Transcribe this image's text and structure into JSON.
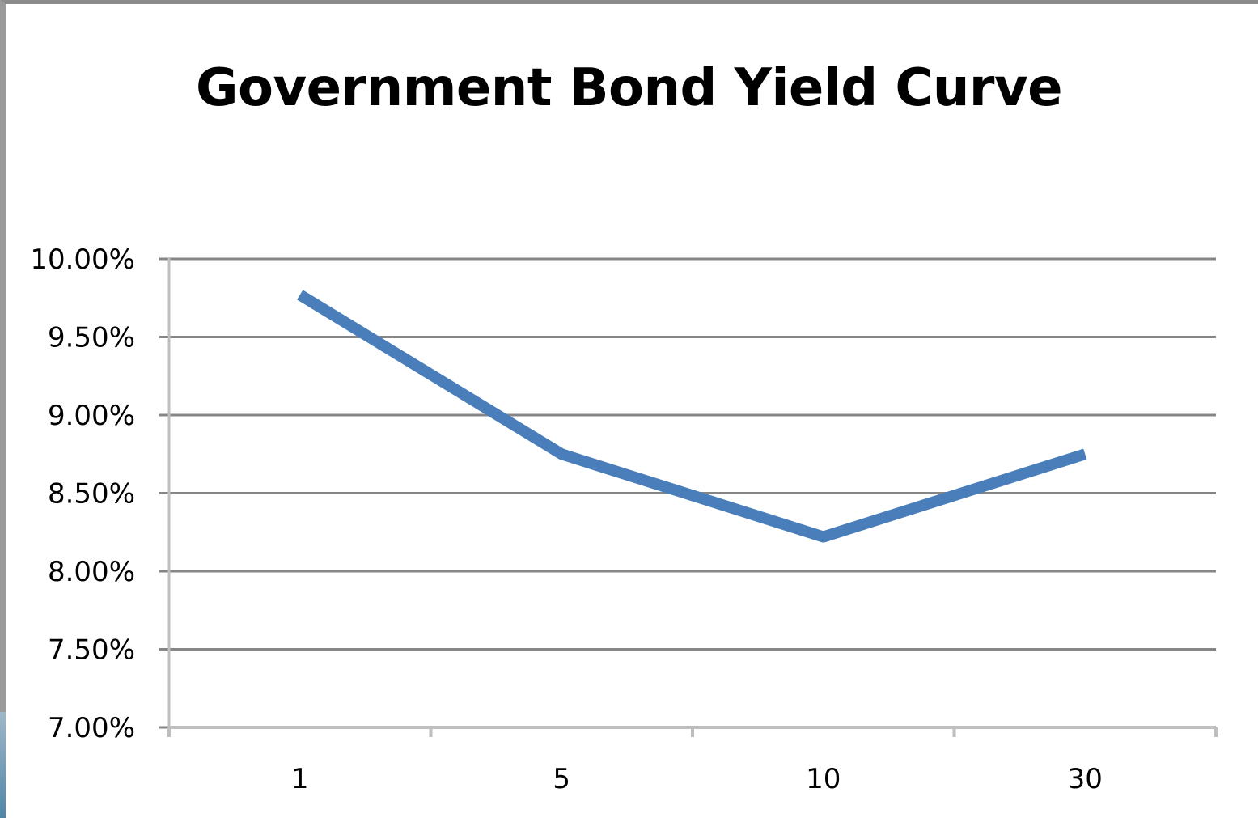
{
  "chart_data": {
    "type": "line",
    "title": "Government Bond Yield Curve",
    "xlabel": "",
    "ylabel": "",
    "categories": [
      "1",
      "5",
      "10",
      "30"
    ],
    "series": [
      {
        "values": [
          9.77,
          8.75,
          8.22,
          8.75
        ]
      }
    ],
    "ylim": [
      7.0,
      10.0
    ],
    "yticks": [
      "7.00%",
      "7.50%",
      "8.00%",
      "8.50%",
      "9.00%",
      "9.50%",
      "10.00%"
    ],
    "grid": true,
    "legend": "none",
    "colors": {
      "line": "#4a7ebb",
      "grid": "#868686",
      "axis": "#bfbfbf"
    }
  }
}
